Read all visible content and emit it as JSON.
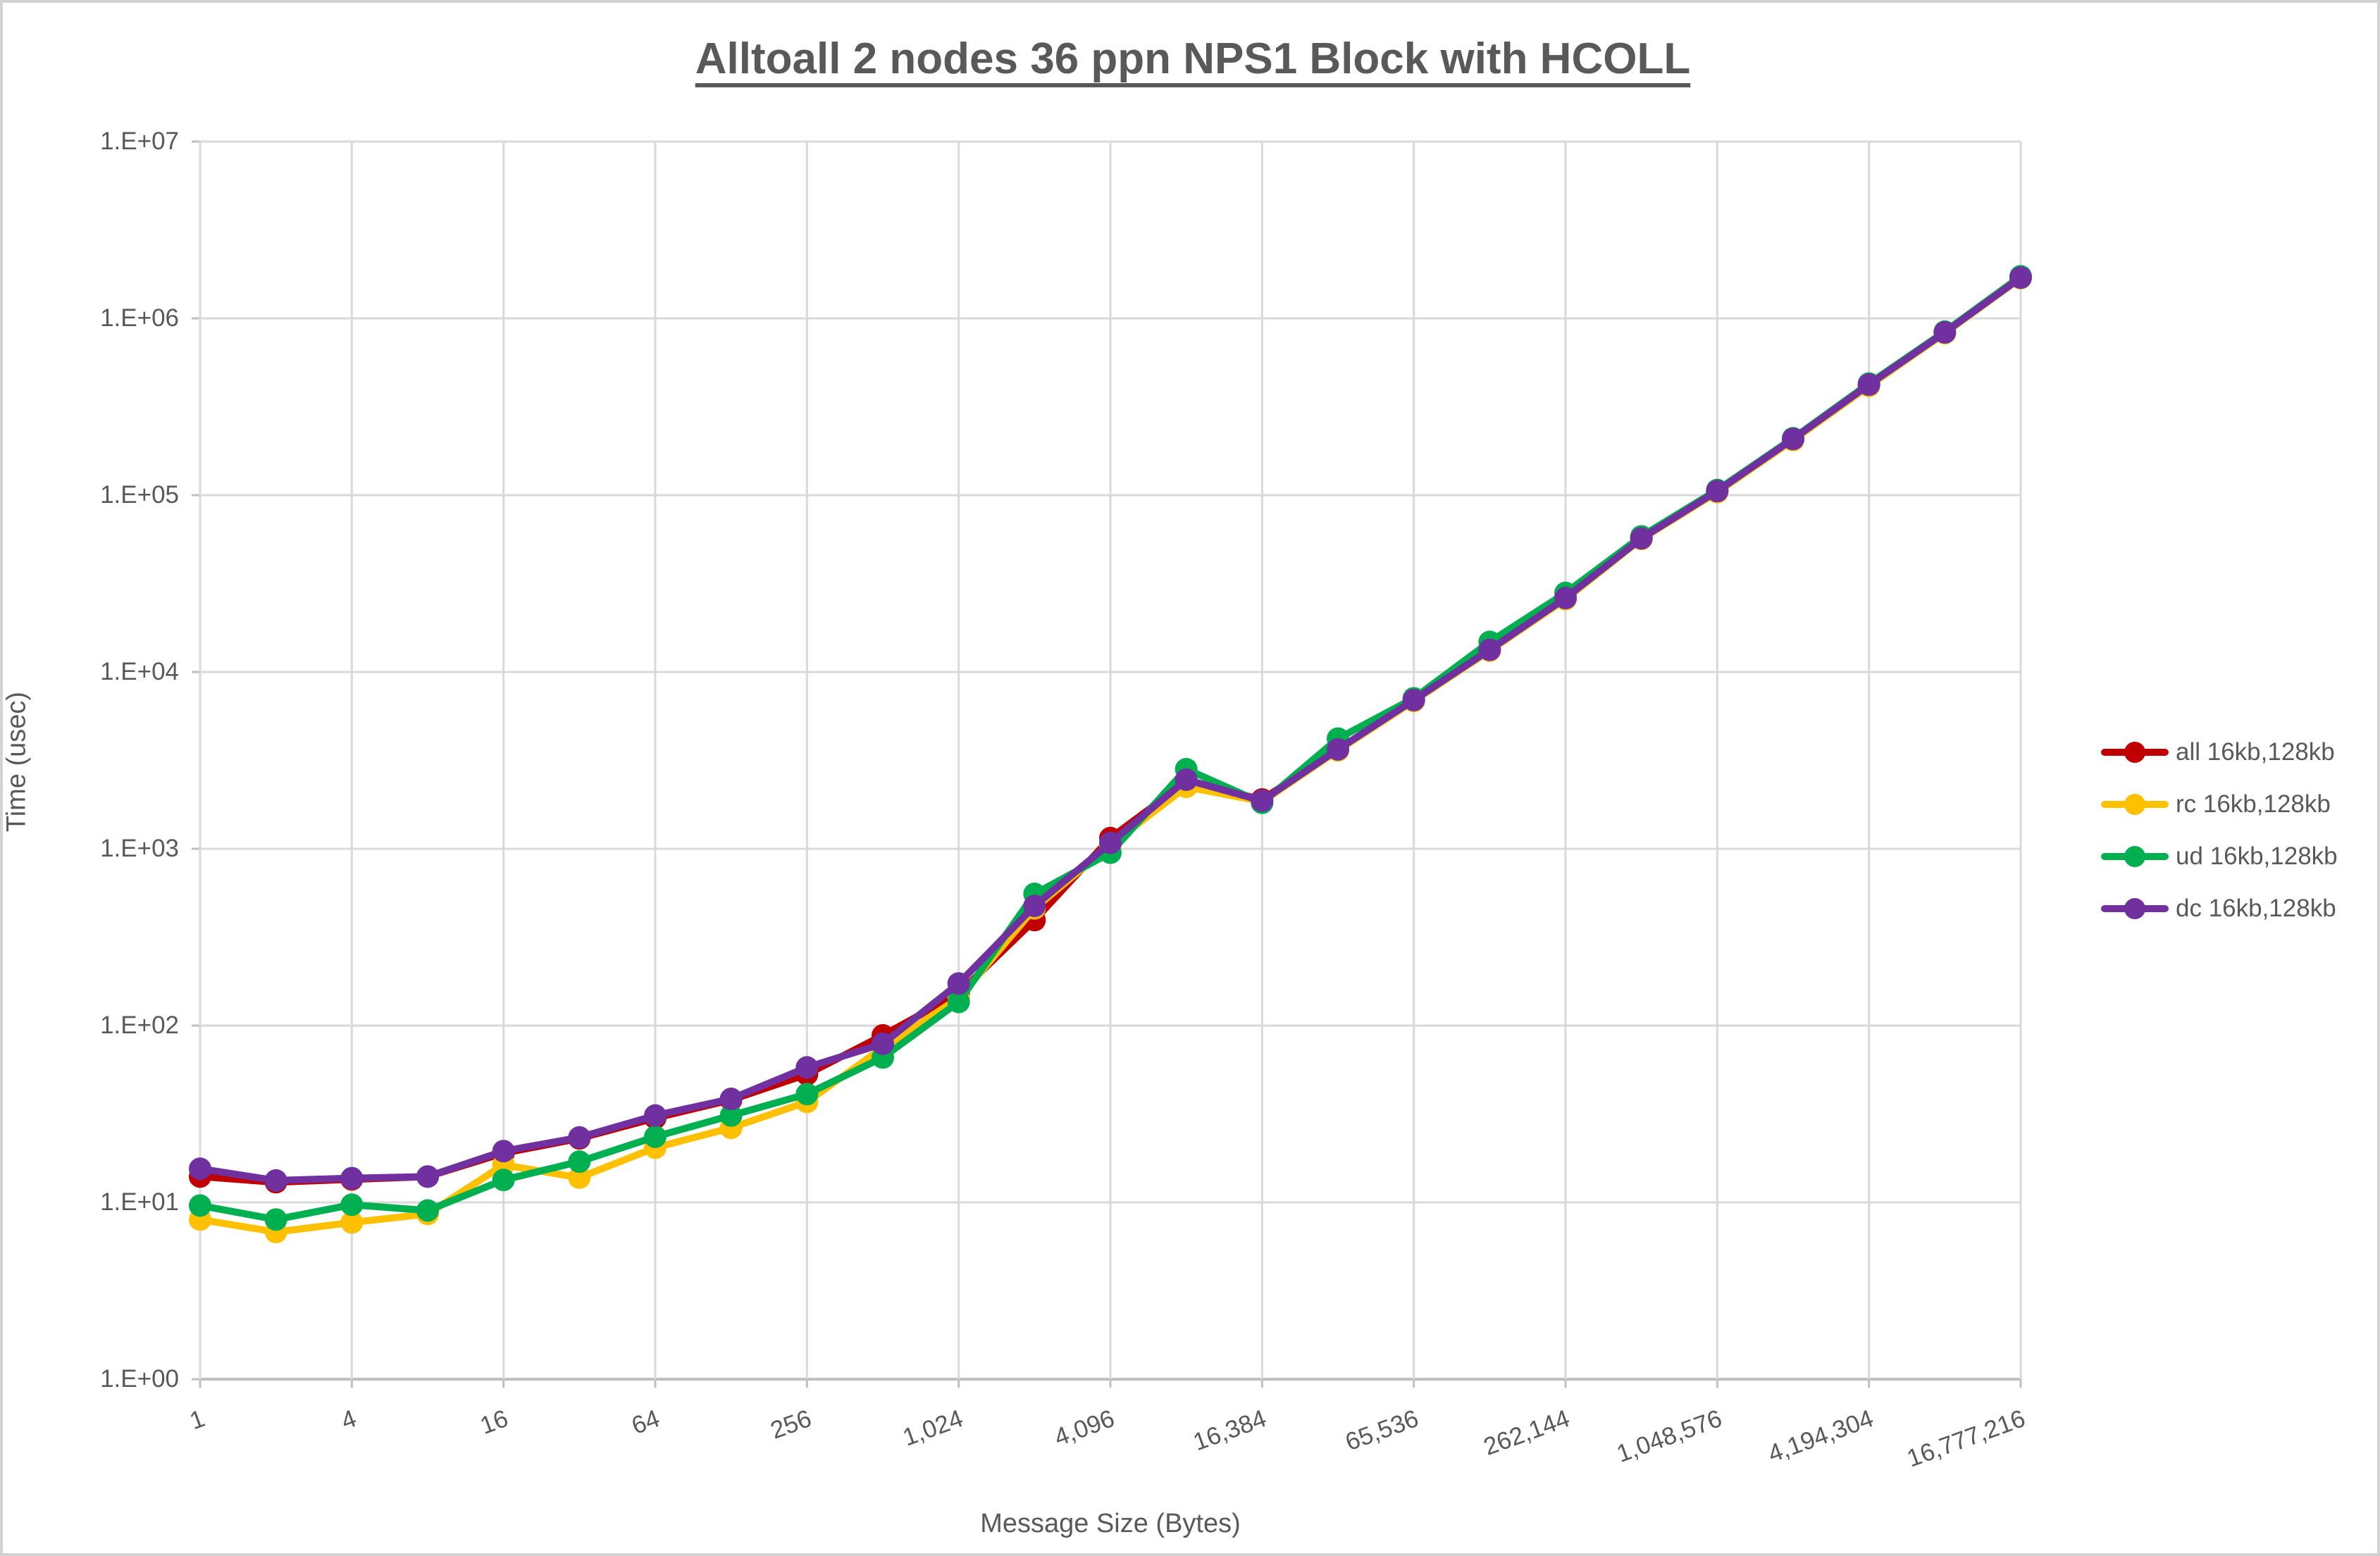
{
  "window": {
    "background": "#ffffff",
    "frame_border_color": "#d2d2d2"
  },
  "chart": {
    "title": "Alltoall 2 nodes 36 ppn NPS1 Block with HCOLL",
    "x_axis_title": "Message Size (Bytes)",
    "y_axis_title": "Time (usec)",
    "text_color": "#595959",
    "gridline_color": "#d9d9d9",
    "axis_line_color": "#bfbfbf"
  },
  "legend": {
    "position": "right",
    "items": [
      {
        "label": "all 16kb,128kb",
        "color": "#C00000"
      },
      {
        "label": "rc 16kb,128kb",
        "color": "#FFC000"
      },
      {
        "label": "ud 16kb,128kb",
        "color": "#00B050"
      },
      {
        "label": "dc 16kb,128kb",
        "color": "#7030A0"
      }
    ]
  },
  "chart_data": {
    "type": "line",
    "title": "Alltoall 2 nodes 36 ppn NPS1 Block with HCOLL",
    "xlabel": "Message Size (Bytes)",
    "ylabel": "Time (usec)",
    "x_scale": "log2",
    "y_scale": "log10",
    "xlim": [
      1,
      16777216
    ],
    "ylim": [
      1,
      10000000
    ],
    "grid": true,
    "legend_position": "right",
    "y_tick_labels": [
      "1.E+00",
      "1.E+01",
      "1.E+02",
      "1.E+03",
      "1.E+04",
      "1.E+05",
      "1.E+06",
      "1.E+07"
    ],
    "x_tick_values": [
      1,
      4,
      16,
      64,
      256,
      1024,
      4096,
      16384,
      65536,
      262144,
      1048576,
      4194304,
      16777216
    ],
    "x_tick_labels": [
      "1",
      "4",
      "16",
      "64",
      "256",
      "1,024",
      "4,096",
      "16,384",
      "65,536",
      "262,144",
      "1,048,576",
      "4,194,304",
      "16,777,216"
    ],
    "x": [
      1,
      2,
      4,
      8,
      16,
      32,
      64,
      128,
      256,
      512,
      1024,
      2048,
      4096,
      8192,
      16384,
      32768,
      65536,
      131072,
      262144,
      524288,
      1048576,
      2097152,
      4194304,
      8388608,
      16777216
    ],
    "series": [
      {
        "name": "all 16kb,128kb",
        "color": "#C00000",
        "values": [
          14,
          13,
          13.5,
          14,
          19,
          23,
          30,
          38,
          53,
          88,
          152,
          395,
          1150,
          2400,
          1900,
          3650,
          6900,
          13300,
          26000,
          57000,
          105000,
          207000,
          420000,
          830000,
          1700000
        ]
      },
      {
        "name": "rc 16kb,128kb",
        "color": "#FFC000",
        "values": [
          8,
          6.8,
          7.7,
          8.6,
          16.3,
          13.8,
          20.4,
          26.4,
          37,
          75,
          143,
          460,
          1050,
          2240,
          1850,
          3600,
          6850,
          13200,
          25800,
          56500,
          104000,
          205000,
          415000,
          825000,
          1690000
        ]
      },
      {
        "name": "ud 16kb,128kb",
        "color": "#00B050",
        "values": [
          9.6,
          8,
          9.7,
          9,
          13.4,
          17,
          23.5,
          31,
          41,
          66,
          136,
          556,
          950,
          2820,
          1820,
          4200,
          7100,
          14800,
          28000,
          58500,
          107000,
          210000,
          428000,
          842000,
          1730000
        ]
      },
      {
        "name": "dc 16kb,128kb",
        "color": "#7030A0",
        "values": [
          15.5,
          13.3,
          13.7,
          14,
          19.5,
          23.3,
          31,
          38.5,
          58,
          79,
          173,
          475,
          1080,
          2460,
          1870,
          3650,
          6940,
          13350,
          26200,
          57000,
          105500,
          208000,
          422000,
          833000,
          1700000
        ]
      }
    ]
  }
}
